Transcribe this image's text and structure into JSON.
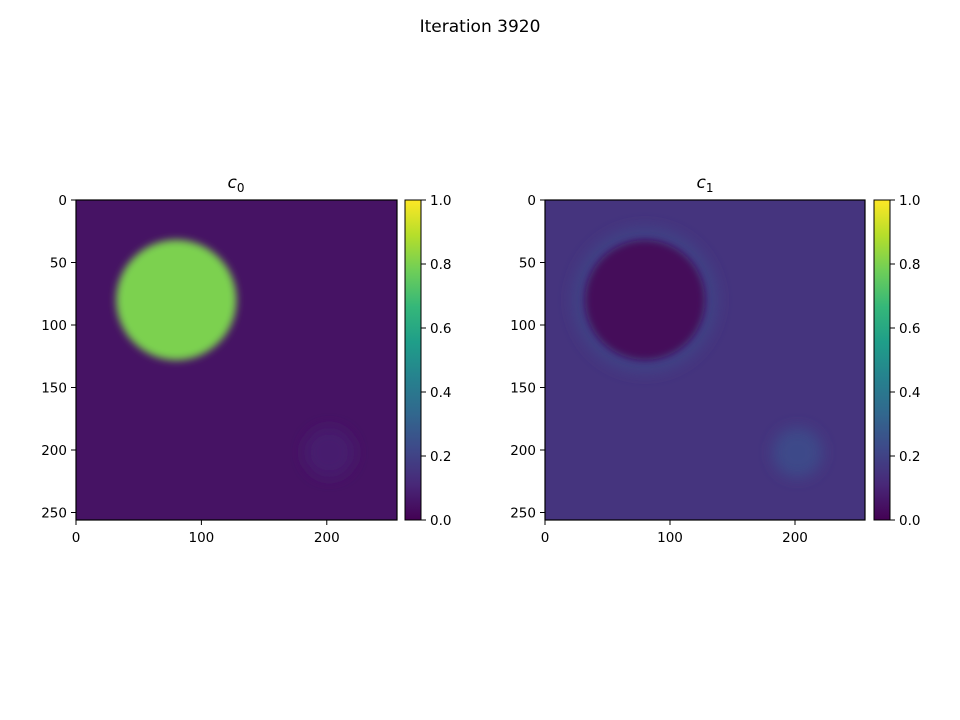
{
  "figure": {
    "title": "Iteration 3920"
  },
  "colormap": {
    "name": "viridis",
    "stops": [
      "#440154",
      "#482878",
      "#3e4989",
      "#31688e",
      "#26828e",
      "#1f9e89",
      "#35b779",
      "#6ece58",
      "#b5de2b",
      "#fde725"
    ]
  },
  "chart_data": [
    {
      "type": "heatmap",
      "title": "c",
      "title_subscript": "0",
      "xlim": [
        0,
        256
      ],
      "ylim": [
        256,
        0
      ],
      "xticks": [
        0,
        100,
        200
      ],
      "yticks": [
        0,
        50,
        100,
        150,
        200,
        250
      ],
      "colorbar": {
        "min": 0.0,
        "max": 1.0,
        "ticks": [
          "0.0",
          "0.2",
          "0.4",
          "0.6",
          "0.8",
          "1.0"
        ]
      },
      "background_value": 0.05,
      "features": [
        {
          "name": "large-disk",
          "cx": 80,
          "cy": 80,
          "r": 48,
          "value": 0.8
        },
        {
          "name": "small-disk",
          "cx": 202,
          "cy": 202,
          "r": 20,
          "value": 0.08
        }
      ]
    },
    {
      "type": "heatmap",
      "title": "c",
      "title_subscript": "1",
      "xlim": [
        0,
        256
      ],
      "ylim": [
        256,
        0
      ],
      "xticks": [
        0,
        100,
        200
      ],
      "yticks": [
        0,
        50,
        100,
        150,
        200,
        250
      ],
      "colorbar": {
        "min": 0.0,
        "max": 1.0,
        "ticks": [
          "0.0",
          "0.2",
          "0.4",
          "0.6",
          "0.8",
          "1.0"
        ]
      },
      "background_value": 0.15,
      "features": [
        {
          "name": "large-disk",
          "cx": 80,
          "cy": 80,
          "r": 48,
          "value": 0.02
        },
        {
          "name": "halo",
          "cx": 80,
          "cy": 80,
          "r": 58,
          "value": 0.2
        },
        {
          "name": "small-disk",
          "cx": 202,
          "cy": 202,
          "r": 20,
          "value": 0.22
        }
      ]
    }
  ]
}
